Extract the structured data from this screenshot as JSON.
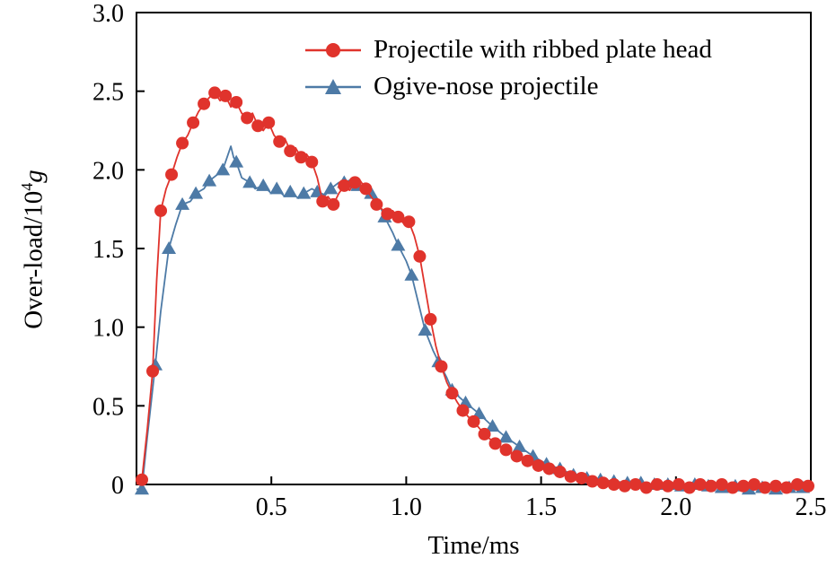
{
  "chart_data": {
    "type": "line",
    "title": "",
    "xlabel": "Time/ms",
    "ylabel": "Over-load/10⁴g",
    "ylabel_parts": {
      "prefix": "Over-load/10",
      "sup": "4",
      "italic": "g"
    },
    "xlim": [
      0,
      2.5
    ],
    "ylim": [
      0,
      3.0
    ],
    "x_ticks": [
      0.5,
      1.0,
      1.5,
      2.0,
      2.5
    ],
    "x_tick_labels": [
      "0.5",
      "1.0",
      "1.5",
      "2.0",
      "2.5"
    ],
    "y_ticks": [
      0,
      0.5,
      1.0,
      1.5,
      2.0,
      2.5,
      3.0
    ],
    "y_tick_labels": [
      "0",
      "0.5",
      "1.0",
      "1.5",
      "2.0",
      "2.5",
      "3.0"
    ],
    "grid": false,
    "legend_position": "inside top center",
    "axis_color": "#000000",
    "series": [
      {
        "name": "Projectile with ribbed plate head",
        "color": "#e0332c",
        "marker": "circle",
        "markers": {
          "x": [
            0.02,
            0.06,
            0.09,
            0.13,
            0.17,
            0.21,
            0.25,
            0.29,
            0.33,
            0.37,
            0.41,
            0.45,
            0.49,
            0.53,
            0.57,
            0.61,
            0.65,
            0.69,
            0.73,
            0.77,
            0.81,
            0.85,
            0.89,
            0.93,
            0.97,
            1.01,
            1.05,
            1.09,
            1.13,
            1.17,
            1.21,
            1.25,
            1.29,
            1.33,
            1.37,
            1.41,
            1.45,
            1.49,
            1.53,
            1.57,
            1.61,
            1.65,
            1.69,
            1.73,
            1.77,
            1.81,
            1.85,
            1.89,
            1.93,
            1.97,
            2.01,
            2.05,
            2.09,
            2.13,
            2.17,
            2.21,
            2.25,
            2.29,
            2.33,
            2.37,
            2.41,
            2.45,
            2.49
          ],
          "y": [
            0.03,
            0.72,
            1.74,
            1.97,
            2.17,
            2.3,
            2.42,
            2.49,
            2.47,
            2.43,
            2.33,
            2.28,
            2.3,
            2.18,
            2.12,
            2.08,
            2.05,
            1.8,
            1.78,
            1.9,
            1.92,
            1.88,
            1.78,
            1.72,
            1.7,
            1.67,
            1.45,
            1.05,
            0.75,
            0.58,
            0.47,
            0.4,
            0.32,
            0.26,
            0.22,
            0.18,
            0.15,
            0.12,
            0.1,
            0.08,
            0.05,
            0.04,
            0.02,
            0.01,
            0.0,
            -0.01,
            0.0,
            -0.02,
            0.0,
            -0.01,
            0.0,
            -0.02,
            0.0,
            -0.01,
            0.0,
            -0.02,
            -0.01,
            0.0,
            -0.02,
            -0.01,
            -0.02,
            0.0,
            -0.01
          ]
        },
        "line": {
          "x": [
            0.0,
            0.02,
            0.04,
            0.06,
            0.075,
            0.09,
            0.11,
            0.13,
            0.15,
            0.17,
            0.19,
            0.21,
            0.23,
            0.25,
            0.27,
            0.29,
            0.31,
            0.33,
            0.35,
            0.37,
            0.39,
            0.41,
            0.43,
            0.45,
            0.47,
            0.49,
            0.51,
            0.53,
            0.55,
            0.57,
            0.59,
            0.61,
            0.63,
            0.65,
            0.67,
            0.69,
            0.71,
            0.73,
            0.75,
            0.77,
            0.79,
            0.81,
            0.83,
            0.85,
            0.87,
            0.89,
            0.91,
            0.93,
            0.95,
            0.97,
            0.99,
            1.01,
            1.03,
            1.05,
            1.07,
            1.09,
            1.11,
            1.13,
            1.15,
            1.17,
            1.19,
            1.21,
            1.23,
            1.25,
            1.29,
            1.33,
            1.37,
            1.41,
            1.45,
            1.49,
            1.53,
            1.57,
            1.61,
            1.65,
            1.69,
            1.73,
            1.77,
            1.81,
            1.85,
            1.89,
            1.93,
            1.97,
            2.01,
            2.05,
            2.09,
            2.13,
            2.17,
            2.21,
            2.25,
            2.29,
            2.33,
            2.37,
            2.41,
            2.45,
            2.49
          ],
          "y": [
            0.0,
            0.03,
            0.35,
            0.72,
            1.3,
            1.74,
            1.88,
            1.97,
            2.08,
            2.17,
            2.22,
            2.3,
            2.37,
            2.42,
            2.46,
            2.49,
            2.44,
            2.47,
            2.4,
            2.43,
            2.36,
            2.33,
            2.36,
            2.28,
            2.25,
            2.3,
            2.22,
            2.18,
            2.2,
            2.12,
            2.14,
            2.08,
            2.1,
            2.05,
            1.95,
            1.8,
            1.83,
            1.78,
            1.85,
            1.9,
            1.87,
            1.92,
            1.93,
            1.88,
            1.83,
            1.78,
            1.75,
            1.72,
            1.74,
            1.7,
            1.66,
            1.67,
            1.58,
            1.45,
            1.25,
            1.05,
            0.88,
            0.75,
            0.65,
            0.58,
            0.52,
            0.47,
            0.43,
            0.4,
            0.32,
            0.26,
            0.22,
            0.18,
            0.15,
            0.12,
            0.1,
            0.08,
            0.05,
            0.04,
            0.02,
            0.01,
            0.0,
            -0.01,
            0.0,
            -0.02,
            0.0,
            -0.01,
            0.0,
            -0.02,
            0.0,
            -0.01,
            0.0,
            -0.02,
            -0.01,
            0.0,
            -0.02,
            -0.01,
            -0.02,
            0.0,
            -0.01
          ]
        }
      },
      {
        "name": "Ogive-nose projectile",
        "color": "#4d7aa6",
        "marker": "triangle",
        "markers": {
          "x": [
            0.02,
            0.07,
            0.12,
            0.17,
            0.22,
            0.27,
            0.32,
            0.37,
            0.42,
            0.47,
            0.52,
            0.57,
            0.62,
            0.67,
            0.72,
            0.77,
            0.82,
            0.87,
            0.92,
            0.97,
            1.02,
            1.07,
            1.12,
            1.17,
            1.22,
            1.27,
            1.32,
            1.37,
            1.42,
            1.47,
            1.52,
            1.57,
            1.62,
            1.67,
            1.72,
            1.77,
            1.82,
            1.87,
            1.92,
            1.97,
            2.02,
            2.07,
            2.12,
            2.17,
            2.22,
            2.27,
            2.32,
            2.37,
            2.42,
            2.47
          ],
          "y": [
            -0.03,
            0.76,
            1.5,
            1.78,
            1.85,
            1.93,
            2.0,
            2.05,
            1.92,
            1.9,
            1.88,
            1.86,
            1.85,
            1.86,
            1.88,
            1.92,
            1.9,
            1.85,
            1.7,
            1.52,
            1.33,
            0.98,
            0.78,
            0.6,
            0.52,
            0.45,
            0.37,
            0.3,
            0.24,
            0.18,
            0.13,
            0.1,
            0.06,
            0.04,
            0.03,
            0.02,
            0.01,
            0.01,
            0.0,
            0.0,
            -0.01,
            0.0,
            -0.01,
            -0.02,
            -0.01,
            -0.03,
            -0.02,
            -0.03,
            -0.02,
            -0.02
          ]
        },
        "line": {
          "x": [
            0.0,
            0.02,
            0.04,
            0.07,
            0.09,
            0.12,
            0.145,
            0.17,
            0.2,
            0.22,
            0.25,
            0.27,
            0.3,
            0.32,
            0.34,
            0.35,
            0.36,
            0.37,
            0.39,
            0.42,
            0.44,
            0.47,
            0.5,
            0.52,
            0.55,
            0.57,
            0.6,
            0.62,
            0.65,
            0.67,
            0.7,
            0.72,
            0.75,
            0.77,
            0.8,
            0.82,
            0.85,
            0.87,
            0.9,
            0.92,
            0.95,
            0.97,
            1.0,
            1.02,
            1.05,
            1.07,
            1.1,
            1.12,
            1.15,
            1.17,
            1.2,
            1.22,
            1.27,
            1.32,
            1.37,
            1.42,
            1.47,
            1.52,
            1.57,
            1.62,
            1.67,
            1.72,
            1.77,
            1.82,
            1.87,
            1.92,
            1.97,
            2.02,
            2.07,
            2.12,
            2.17,
            2.22,
            2.27,
            2.32,
            2.37,
            2.42,
            2.47
          ],
          "y": [
            -0.03,
            -0.03,
            0.3,
            0.76,
            1.1,
            1.5,
            1.65,
            1.78,
            1.8,
            1.85,
            1.88,
            1.93,
            1.97,
            2.0,
            2.1,
            2.15,
            2.08,
            2.05,
            1.95,
            1.92,
            1.88,
            1.9,
            1.85,
            1.88,
            1.83,
            1.86,
            1.82,
            1.85,
            1.88,
            1.86,
            1.84,
            1.88,
            1.92,
            1.92,
            1.94,
            1.9,
            1.88,
            1.85,
            1.78,
            1.7,
            1.6,
            1.52,
            1.42,
            1.33,
            1.12,
            0.98,
            0.85,
            0.78,
            0.68,
            0.6,
            0.55,
            0.52,
            0.45,
            0.37,
            0.3,
            0.24,
            0.18,
            0.13,
            0.1,
            0.06,
            0.04,
            0.03,
            0.02,
            0.01,
            0.01,
            0.0,
            0.0,
            -0.01,
            0.0,
            -0.01,
            -0.02,
            -0.01,
            -0.03,
            -0.02,
            -0.03,
            -0.02,
            -0.02
          ]
        }
      }
    ]
  }
}
